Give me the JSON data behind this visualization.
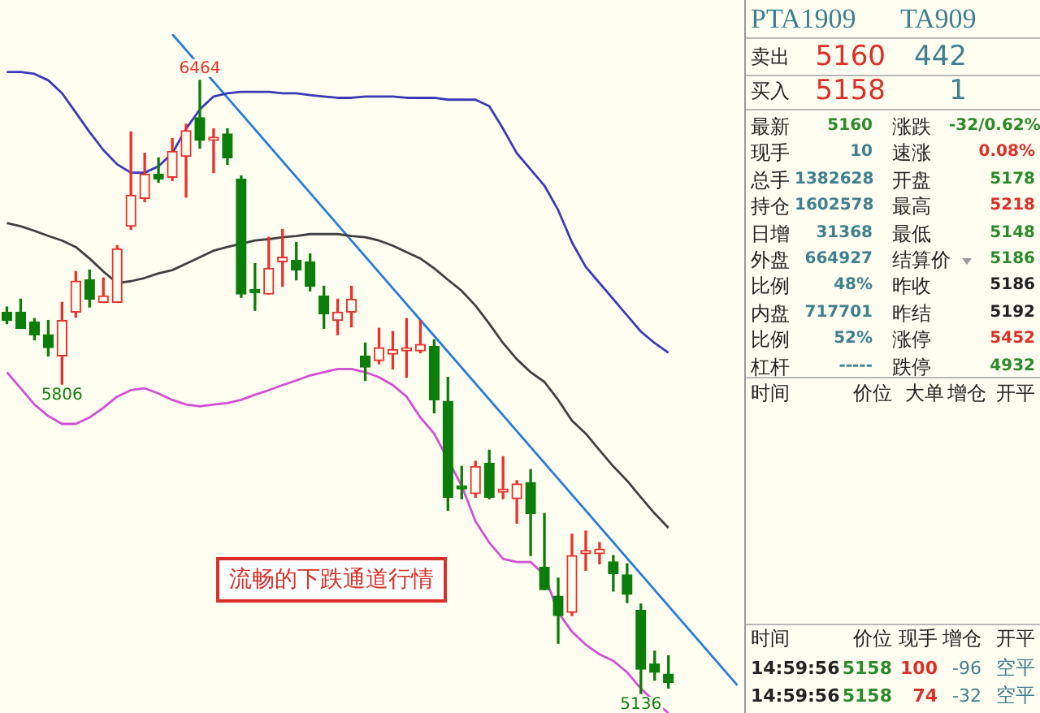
{
  "chart_data": [
    {
      "type": "candlestick",
      "tick_labels": false,
      "legend": false,
      "categories": [
        null,
        null,
        null,
        null,
        null,
        null,
        null,
        null,
        null,
        null,
        null,
        null,
        null,
        null,
        null,
        null,
        null,
        null,
        null,
        null,
        null,
        null,
        null,
        null,
        null,
        null,
        null,
        null,
        null,
        null,
        null,
        null,
        null,
        null,
        null,
        null,
        null,
        null,
        null,
        null,
        null,
        null,
        null,
        null,
        null,
        null,
        null,
        null,
        null,
        null,
        null,
        null,
        null,
        null
      ],
      "ohlc": [
        [
          5962,
          5973,
          5937,
          5944
        ],
        [
          5962,
          5990,
          5927,
          5927
        ],
        [
          5941,
          5948,
          5902,
          5913
        ],
        [
          5913,
          5944,
          5867,
          5885
        ],
        [
          5867,
          5983,
          5806,
          5944
        ],
        [
          5962,
          6050,
          5951,
          6029
        ],
        [
          6032,
          6053,
          5973,
          5990
        ],
        [
          5983,
          6036,
          5983,
          5997
        ],
        [
          5983,
          6106,
          5983,
          6099
        ],
        [
          6148,
          6352,
          6141,
          6215
        ],
        [
          6208,
          6306,
          6201,
          6261
        ],
        [
          6261,
          6296,
          6243,
          6250
        ],
        [
          6254,
          6338,
          6247,
          6310
        ],
        [
          6299,
          6369,
          6211,
          6355
        ],
        [
          6383,
          6464,
          6317,
          6334
        ],
        [
          6334,
          6359,
          6264,
          6341
        ],
        [
          6348,
          6359,
          6282,
          6296
        ],
        [
          6250,
          6257,
          5994,
          6001
        ],
        [
          6011,
          6067,
          5966,
          6004
        ],
        [
          6001,
          6124,
          6001,
          6057
        ],
        [
          6071,
          6141,
          6018,
          6081
        ],
        [
          6074,
          6113,
          6032,
          6053
        ],
        [
          6071,
          6088,
          6008,
          6018
        ],
        [
          5997,
          6018,
          5927,
          5958
        ],
        [
          5944,
          5990,
          5913,
          5962
        ],
        [
          5962,
          6018,
          5930,
          5990
        ],
        [
          5867,
          5895,
          5814,
          5843
        ],
        [
          5857,
          5927,
          5850,
          5885
        ],
        [
          5871,
          5920,
          5839,
          5881
        ],
        [
          5878,
          5948,
          5821,
          5885
        ],
        [
          5878,
          5944,
          5874,
          5892
        ],
        [
          5888,
          5902,
          5744,
          5772
        ],
        [
          5769,
          5821,
          5533,
          5561
        ],
        [
          5586,
          5628,
          5558,
          5579
        ],
        [
          5569,
          5639,
          5561,
          5628
        ],
        [
          5635,
          5663,
          5558,
          5561
        ],
        [
          5572,
          5649,
          5558,
          5579
        ],
        [
          5558,
          5597,
          5505,
          5590
        ],
        [
          5593,
          5621,
          5435,
          5526
        ],
        [
          5410,
          5526,
          5361,
          5361
        ],
        [
          5347,
          5386,
          5245,
          5305
        ],
        [
          5312,
          5481,
          5305,
          5435
        ],
        [
          5439,
          5488,
          5403,
          5446
        ],
        [
          5439,
          5463,
          5417,
          5449
        ],
        [
          5421,
          5435,
          5358,
          5396
        ],
        [
          5393,
          5417,
          5333,
          5351
        ],
        [
          5316,
          5330,
          5136,
          5189
        ],
        [
          5200,
          5228,
          5165,
          5182
        ],
        [
          5178,
          5218,
          5148,
          5160
        ],
        null,
        null,
        null,
        null,
        null
      ],
      "series": [
        {
          "type": "line",
          "color": "#3a3ab8",
          "values": [
            6482,
            6482,
            6478,
            6464,
            6436,
            6394,
            6352,
            6313,
            6282,
            6264,
            6264,
            6278,
            6306,
            6359,
            6401,
            6429,
            6436,
            6439,
            6439,
            6439,
            6436,
            6436,
            6432,
            6429,
            6426,
            6426,
            6429,
            6429,
            6429,
            6426,
            6426,
            6426,
            6422,
            6422,
            6422,
            6408,
            6359,
            6306,
            6271,
            6236,
            6183,
            6113,
            6060,
            6025,
            5990,
            5955,
            5920,
            5895,
            5874,
            null,
            null,
            null,
            null,
            null
          ]
        },
        {
          "type": "line",
          "color": "#404040",
          "values": [
            6155,
            6148,
            6138,
            6127,
            6117,
            6103,
            6078,
            6050,
            6025,
            6029,
            6036,
            6046,
            6053,
            6067,
            6081,
            6095,
            6103,
            6110,
            6117,
            6120,
            6124,
            6127,
            6131,
            6131,
            6131,
            6127,
            6124,
            6117,
            6106,
            6092,
            6078,
            6057,
            6032,
            6008,
            5976,
            5937,
            5895,
            5860,
            5832,
            5811,
            5772,
            5727,
            5699,
            5663,
            5628,
            5597,
            5561,
            5526,
            5495,
            null,
            null,
            null,
            null,
            null
          ]
        },
        {
          "type": "line",
          "color": "#d24fd2",
          "values": [
            5832,
            5797,
            5762,
            5737,
            5720,
            5720,
            5734,
            5755,
            5779,
            5793,
            5797,
            5786,
            5772,
            5762,
            5758,
            5762,
            5765,
            5772,
            5783,
            5793,
            5804,
            5814,
            5825,
            5832,
            5839,
            5839,
            5832,
            5821,
            5804,
            5779,
            5734,
            5699,
            null,
            5586,
            5509,
            5463,
            5428,
            5421,
            5421,
            5393,
            5312,
            5270,
            5242,
            5221,
            5207,
            5182,
            5147,
            5119,
            5094,
            null,
            null,
            null,
            null,
            null
          ]
        },
        {
          "type": "line",
          "color": "#2b7bd6",
          "values": [
            null,
            null,
            null,
            null,
            null,
            null,
            null,
            null,
            null,
            null,
            null,
            null,
            6564,
            null,
            null,
            null,
            null,
            null,
            null,
            null,
            null,
            null,
            null,
            null,
            null,
            null,
            null,
            null,
            null,
            null,
            null,
            null,
            null,
            null,
            null,
            null,
            null,
            null,
            null,
            null,
            null,
            null,
            null,
            null,
            null,
            null,
            null,
            null,
            null,
            null,
            null,
            null,
            null,
            5154
          ]
        }
      ],
      "annotations": [
        "流畅的下跌通道行情",
        {
          "text": "6464",
          "y": 6464
        },
        {
          "text": "5806",
          "y": 5806
        },
        {
          "text": "5136",
          "y": 5136
        }
      ]
    },
    {
      "type": "other",
      "annotations": [
        "PTA1909",
        "TA909",
        "卖出",
        "5160",
        "442",
        "买入",
        "5158",
        "1",
        "最新",
        "5160",
        "涨跌",
        "-32/0.62%",
        "现手",
        "10",
        "速涨",
        "0.08%",
        "总手",
        "1382628",
        "开盘",
        "5178",
        "持仓",
        "1602578",
        "最高",
        "5218",
        "日增",
        "31368",
        "最低",
        "5148",
        "外盘",
        "664927",
        "结算价",
        "5186",
        "比例",
        "48%",
        "昨收",
        "5186",
        "内盘",
        "717701",
        "昨结",
        "5192",
        "比例",
        "52%",
        "涨停",
        "5452",
        "杠杆",
        "-----",
        "跌停",
        "4932",
        "时间",
        "价位",
        "大单",
        "增仓",
        "开平",
        "时间",
        "价位",
        "现手",
        "增仓",
        "开平",
        "14:59:56",
        "5158",
        "100",
        "-96",
        "空平",
        "14:59:56",
        "5158",
        "74",
        "-32",
        "空平"
      ]
    }
  ]
}
